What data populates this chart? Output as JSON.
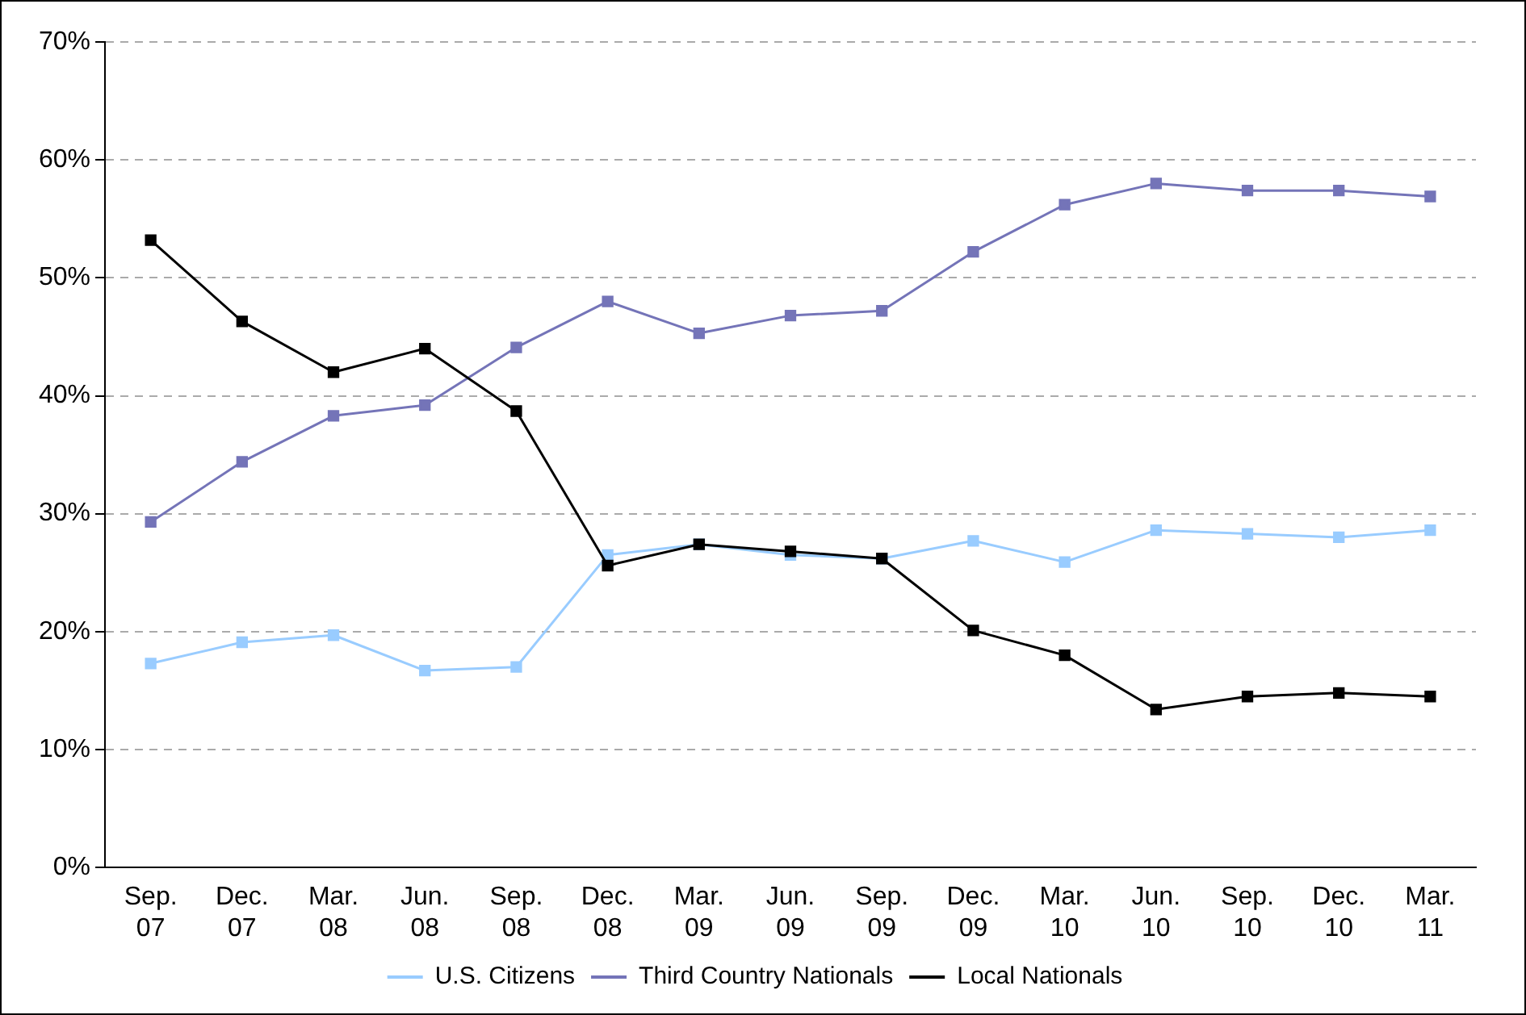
{
  "chart_data": {
    "type": "line",
    "categories": [
      "Sep. 07",
      "Dec. 07",
      "Mar. 08",
      "Jun. 08",
      "Sep. 08",
      "Dec. 08",
      "Mar. 09",
      "Jun. 09",
      "Sep. 09",
      "Dec. 09",
      "Mar. 10",
      "Jun. 10",
      "Sep. 10",
      "Dec. 10",
      "Mar. 11"
    ],
    "series": [
      {
        "name": "U.S. Citizens",
        "color": "#99ccff",
        "values": [
          17.3,
          19.1,
          19.7,
          16.7,
          17.0,
          26.5,
          27.4,
          26.5,
          26.2,
          27.7,
          25.9,
          28.6,
          28.3,
          28.0,
          28.6
        ]
      },
      {
        "name": "Third Country Nationals",
        "color": "#7474b8",
        "values": [
          29.3,
          34.4,
          38.3,
          39.2,
          44.1,
          48.0,
          45.3,
          46.8,
          47.2,
          52.2,
          56.2,
          58.0,
          57.4,
          57.4,
          56.9
        ]
      },
      {
        "name": "Local Nationals",
        "color": "#000000",
        "values": [
          53.2,
          46.3,
          42.0,
          44.0,
          38.7,
          25.6,
          27.4,
          26.8,
          26.2,
          20.1,
          18.0,
          13.4,
          14.5,
          14.8,
          14.5
        ]
      }
    ],
    "ylim": [
      0,
      70
    ],
    "yticks": [
      {
        "value": 0,
        "label": "0%"
      },
      {
        "value": 10,
        "label": "10%"
      },
      {
        "value": 20,
        "label": "20%"
      },
      {
        "value": 30,
        "label": "30%"
      },
      {
        "value": 40,
        "label": "40%"
      },
      {
        "value": 50,
        "label": "50%"
      },
      {
        "value": 60,
        "label": "60%"
      },
      {
        "value": 70,
        "label": "70%"
      }
    ],
    "grid": "y",
    "legend": "bottom",
    "marker": "square",
    "line_style": "solid"
  }
}
